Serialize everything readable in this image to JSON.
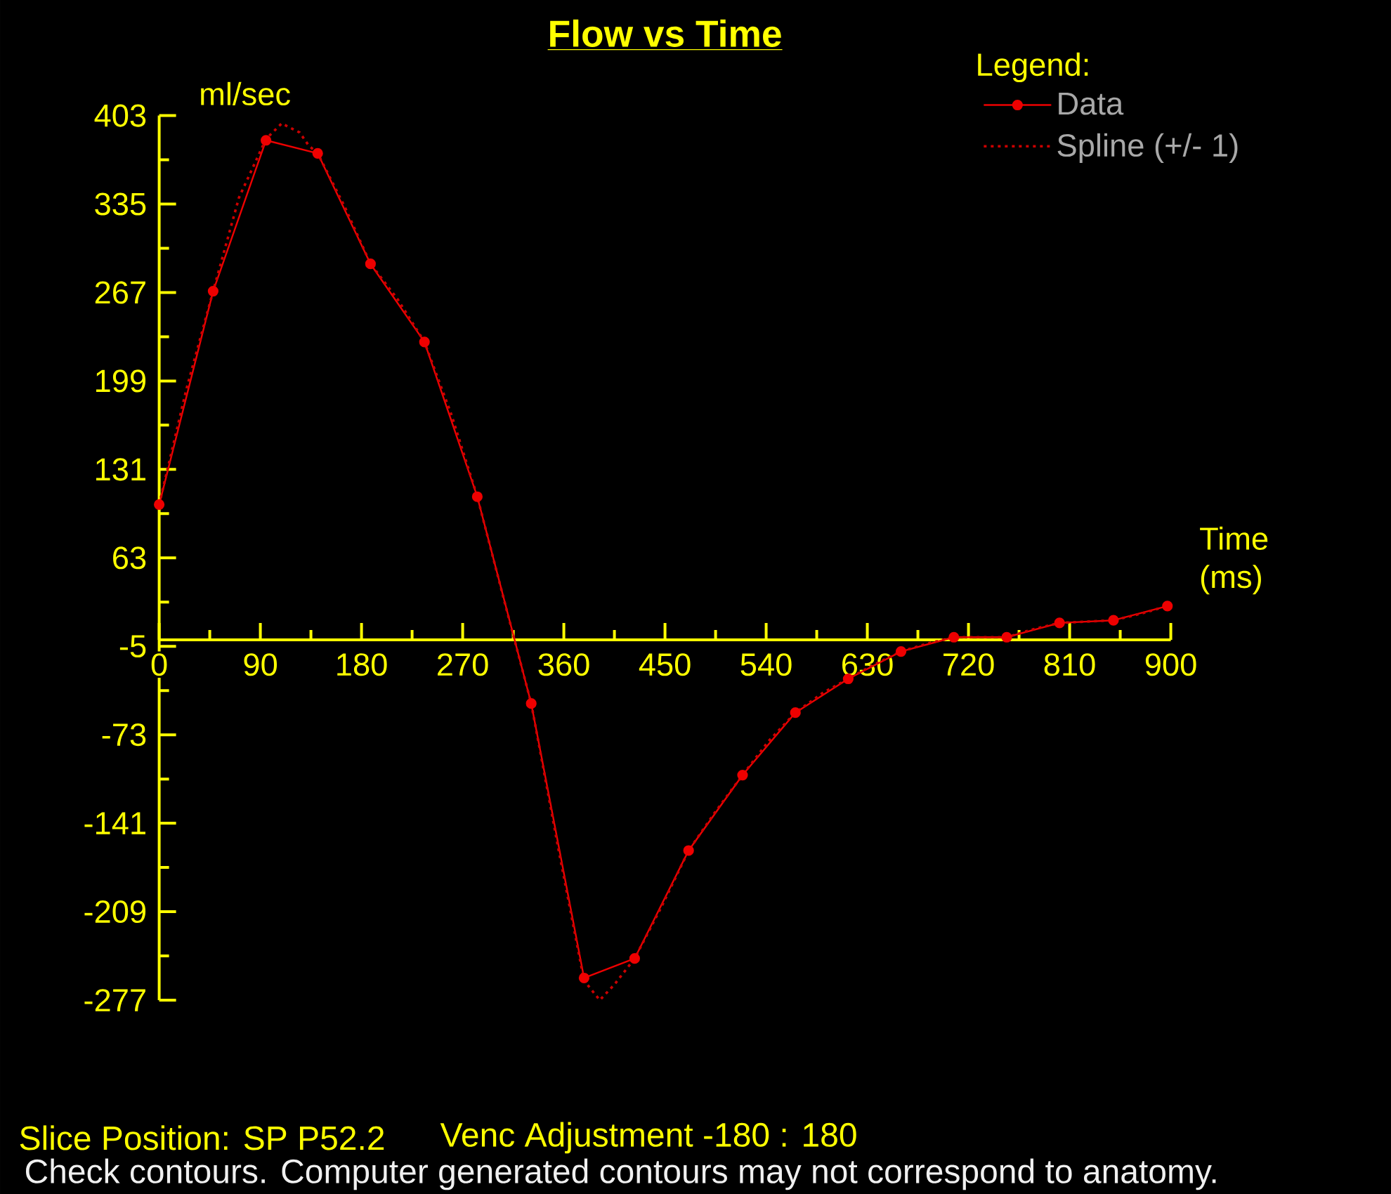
{
  "chart_data": {
    "type": "line",
    "title": "Flow vs Time",
    "xlabel": "Time (ms)",
    "ylabel": "ml/sec",
    "legend_title": "Legend:",
    "legend": "top right",
    "annotations": [
      "Slice Position: SP P52.2",
      "Venc Adjustment -180 : 180",
      "Check contours. Computer generated contours may not correspond to anatomy."
    ],
    "xlim": [
      0,
      900
    ],
    "ylim": [
      -277,
      403
    ],
    "xticks": [
      0,
      {
        "value": 45,
        "label": null
      },
      90,
      {
        "value": 135,
        "label": null
      },
      180,
      {
        "value": 225,
        "label": null
      },
      270,
      {
        "value": 315,
        "label": null
      },
      360,
      {
        "value": 405,
        "label": null
      },
      450,
      {
        "value": 495,
        "label": null
      },
      540,
      {
        "value": 585,
        "label": null
      },
      630,
      {
        "value": 675,
        "label": null
      },
      720,
      {
        "value": 765,
        "label": null
      },
      810,
      {
        "value": 855,
        "label": null
      },
      900
    ],
    "yticks": [
      -277,
      {
        "value": -243,
        "label": null
      },
      -209,
      {
        "value": -175,
        "label": null
      },
      -141,
      {
        "value": -107,
        "label": null
      },
      -73,
      {
        "value": -39,
        "label": null
      },
      -5,
      {
        "value": 29,
        "label": null
      },
      63,
      {
        "value": 97,
        "label": null
      },
      131,
      {
        "value": 165,
        "label": null
      },
      199,
      {
        "value": 233,
        "label": null
      },
      267,
      {
        "value": 301,
        "label": null
      },
      335,
      {
        "value": 369,
        "label": null
      },
      403
    ],
    "series": [
      {
        "name": "Data",
        "color": "#ee0000",
        "marker": "circle",
        "line_style": "solid",
        "x": [
          0,
          48,
          95,
          141,
          188,
          236,
          283,
          331,
          378,
          423,
          471,
          519,
          566,
          613,
          660,
          707,
          754,
          801,
          849,
          897
        ],
        "values": [
          104,
          268,
          384,
          374,
          289,
          229,
          110,
          -49,
          -260,
          -245,
          -162,
          -104,
          -56,
          -30,
          -9,
          2,
          2,
          13,
          15,
          26
        ]
      },
      {
        "name": "Spline (+/- 1)",
        "color": "#cc0000",
        "marker": "none",
        "line_style": "dotted",
        "x": [
          0,
          24,
          48,
          71,
          95,
          109,
          125,
          133,
          141,
          165,
          188,
          212,
          236,
          260,
          283,
          307,
          331,
          355,
          378,
          392,
          405,
          423,
          447,
          471,
          495,
          519,
          542,
          566,
          590,
          613,
          636,
          660,
          683,
          707,
          730,
          754,
          777,
          801,
          825,
          849,
          873,
          897
        ],
        "values": [
          104,
          192,
          268,
          340,
          385,
          397,
          390,
          380,
          374,
          333,
          289,
          262,
          229,
          173,
          110,
          30,
          -49,
          -160,
          -262,
          -277,
          -265,
          -245,
          -205,
          -162,
          -132,
          -104,
          -78,
          -56,
          -41,
          -30,
          -19,
          -9,
          -3,
          2,
          2,
          2,
          8,
          13,
          14,
          15,
          20,
          26
        ]
      }
    ]
  }
}
